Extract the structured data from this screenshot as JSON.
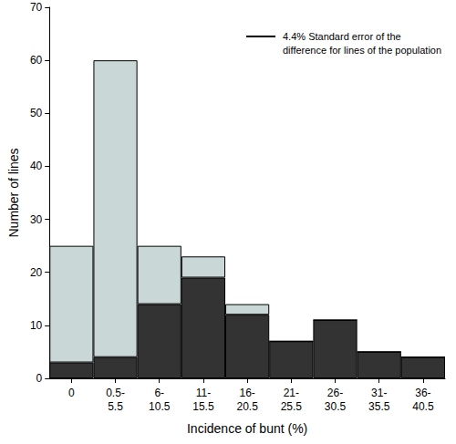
{
  "chart_data": {
    "type": "bar",
    "x_label": "Incidence of bunt (%)",
    "y_label": "Number of lines",
    "annotation": [
      "4.4% Standard error of the",
      "difference for lines of the population"
    ],
    "categories": [
      "0",
      "0.5-5.5",
      "6-10.5",
      "11-15.5",
      "16-20.5",
      "21-25.5",
      "26-30.5",
      "31-35.5",
      "36-40.5"
    ],
    "series": [
      {
        "color": "#333333",
        "values": [
          3,
          4,
          14,
          19,
          12,
          7,
          11,
          5,
          4
        ]
      },
      {
        "color": "#c9d7d7",
        "values": [
          22,
          56,
          11,
          4,
          2,
          0,
          0,
          0,
          0
        ]
      }
    ],
    "stacked": true,
    "ylim": [
      0,
      70
    ],
    "yticks": [
      0,
      10,
      20,
      30,
      40,
      50,
      60,
      70
    ],
    "grid": false
  }
}
